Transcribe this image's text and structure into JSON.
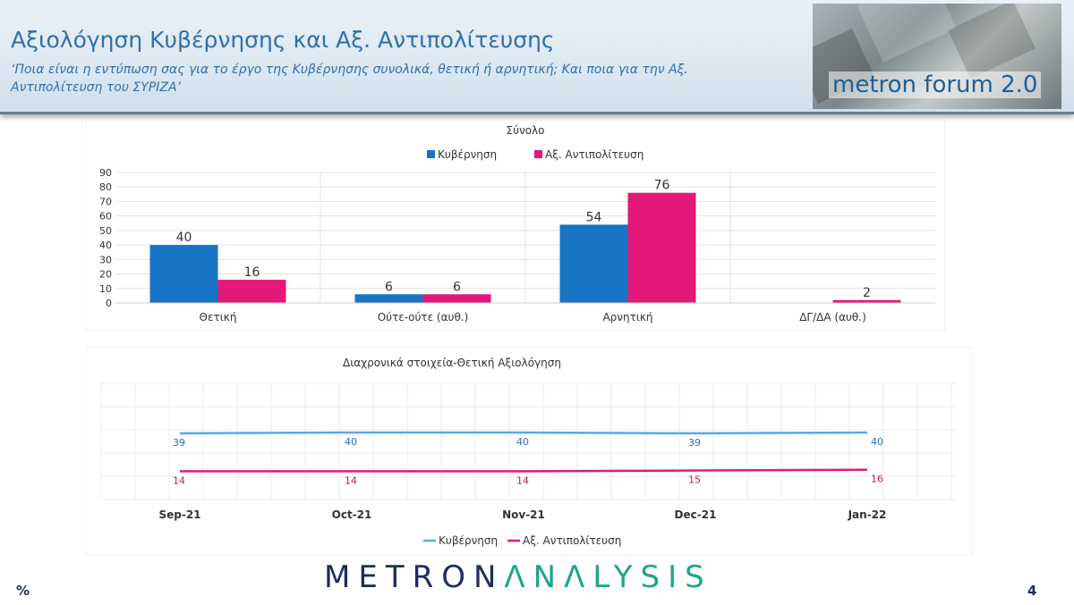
{
  "header": {
    "title": "Αξιολόγηση Κυβέρνησης και Αξ. Αντιπολίτευσης",
    "question": "‘Ποια είναι η εντύπωση σας για το έργο της Κυβέρνησης συνολικά, θετική ή αρνητική; Και ποια για την Αξ. Αντιπολίτευση του ΣΥΡΙΖΑ’",
    "badge": "metron forum 2.0"
  },
  "colors": {
    "government": "#1874c4",
    "opposition": "#e3197a",
    "government_line": "#5aa8e8",
    "opposition_line": "#e3197a",
    "title_blue": "#2f6fad"
  },
  "chart_data": [
    {
      "type": "bar",
      "title": "Σύνολο",
      "categories": [
        "Θετική",
        "Ούτε-ούτε (αυθ.)",
        "Αρνητική",
        "ΔΓ/ΔΑ (αυθ.)"
      ],
      "series": [
        {
          "name": "Κυβέρνηση",
          "values": [
            40,
            6,
            54,
            null
          ]
        },
        {
          "name": "Αξ. Αντιπολίτευση",
          "values": [
            16,
            6,
            76,
            2
          ]
        }
      ],
      "yticks": [
        0,
        10,
        20,
        30,
        40,
        50,
        60,
        70,
        80,
        90
      ],
      "ylim": [
        0,
        90
      ],
      "grid": true,
      "legend": "top"
    },
    {
      "type": "line",
      "title": "Διαχρονικά στοιχεία-Θετική Αξιολόγηση",
      "x": [
        "Sep-21",
        "Oct-21",
        "Nov-21",
        "Dec-21",
        "Jan-22"
      ],
      "series": [
        {
          "name": "Κυβέρνηση",
          "values": [
            39,
            40,
            40,
            39,
            40
          ]
        },
        {
          "name": "Αξ. Αντιπολίτευση",
          "values": [
            14,
            14,
            14,
            15,
            16
          ]
        }
      ],
      "grid": true,
      "legend": "bottom"
    }
  ],
  "footer": {
    "logo_a": "METRON",
    "logo_b": "ΛNΛLYSIS",
    "unit": "%",
    "page": "4"
  }
}
